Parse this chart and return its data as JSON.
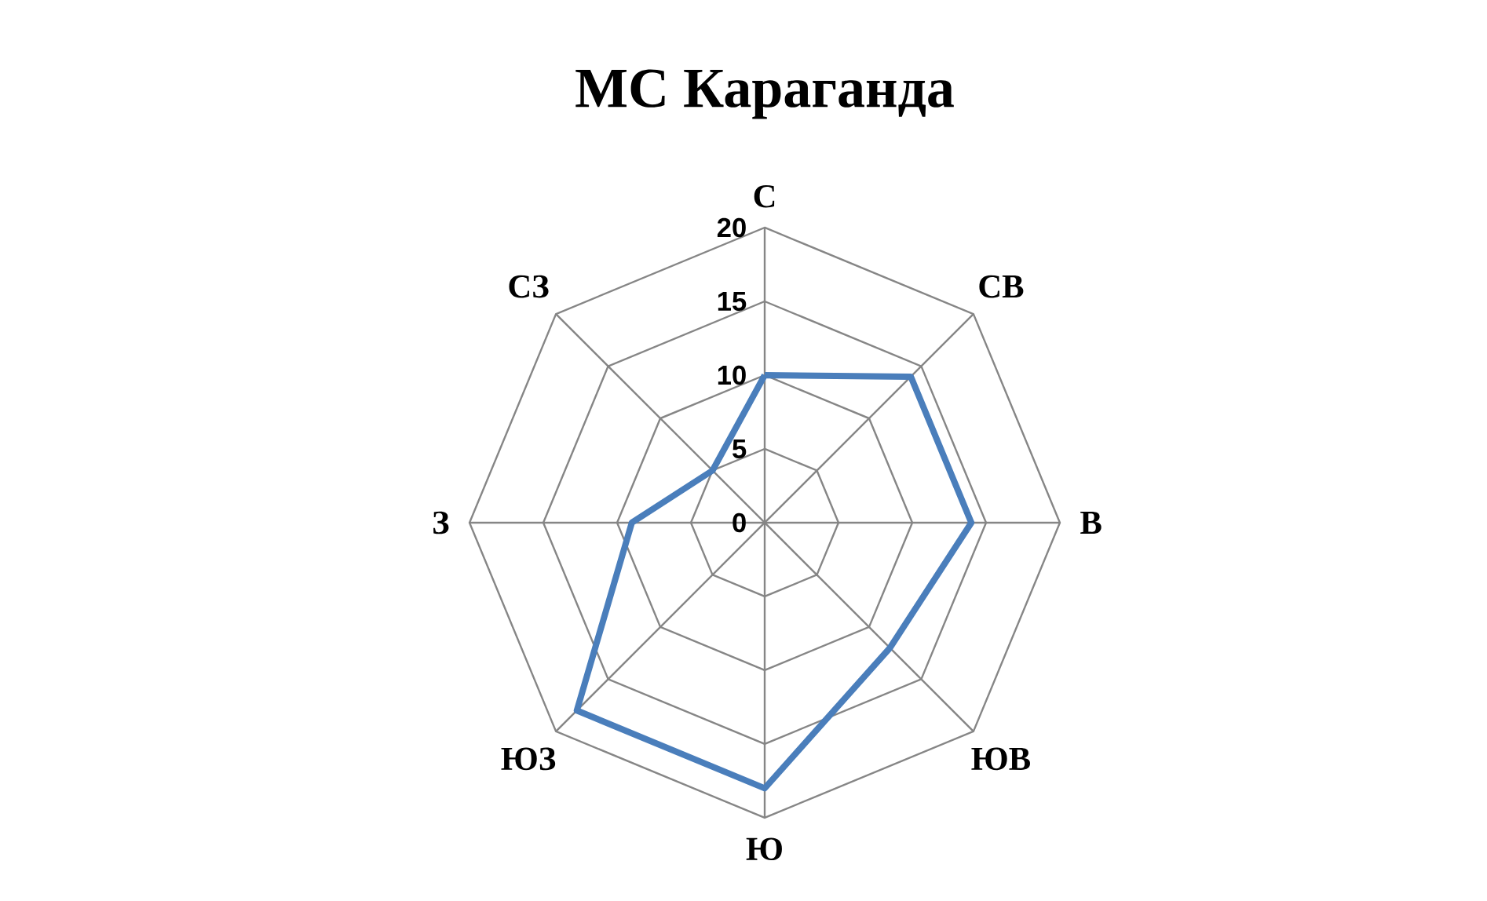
{
  "chart_data": {
    "type": "radar",
    "title": "МС Караганда",
    "categories": [
      "С",
      "СВ",
      "В",
      "ЮВ",
      "Ю",
      "ЮЗ",
      "З",
      "СЗ"
    ],
    "series": [
      {
        "color": "#4a7ebb",
        "values": [
          10,
          14,
          14,
          12,
          18,
          18,
          9,
          5
        ]
      }
    ],
    "ylim": [
      0,
      20
    ],
    "yticks": [
      0,
      5,
      10,
      15,
      20
    ],
    "grid": true
  }
}
